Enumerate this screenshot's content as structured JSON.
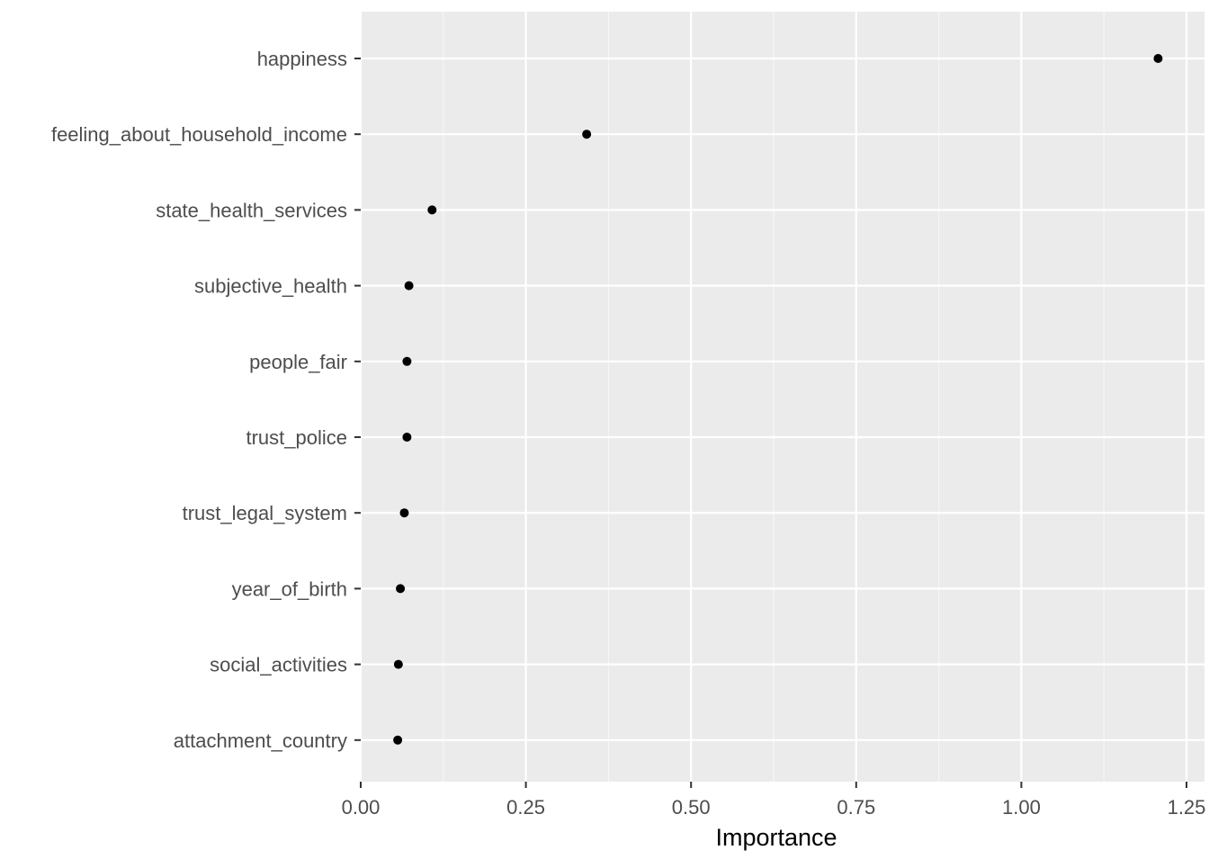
{
  "chart_data": {
    "type": "scatter",
    "title": "",
    "xlabel": "Importance",
    "ylabel": "",
    "xlim": [
      0.0,
      1.25
    ],
    "x_ticks": [
      "0.00",
      "0.25",
      "0.50",
      "0.75",
      "1.00",
      "1.25"
    ],
    "x_tick_values": [
      0.0,
      0.25,
      0.5,
      0.75,
      1.0,
      1.25
    ],
    "grid": true,
    "categories": [
      "happiness",
      "feeling_about_household_income",
      "state_health_services",
      "subjective_health",
      "people_fair",
      "trust_police",
      "trust_legal_system",
      "year_of_birth",
      "social_activities",
      "attachment_country"
    ],
    "values": [
      1.207,
      0.342,
      0.108,
      0.073,
      0.07,
      0.07,
      0.066,
      0.06,
      0.057,
      0.056
    ],
    "colors": {
      "panel_background": "#ebebeb",
      "grid_major": "#ffffff",
      "point": "#000000",
      "tick_label": "#4d4d4d",
      "axis_title": "#000000"
    }
  }
}
